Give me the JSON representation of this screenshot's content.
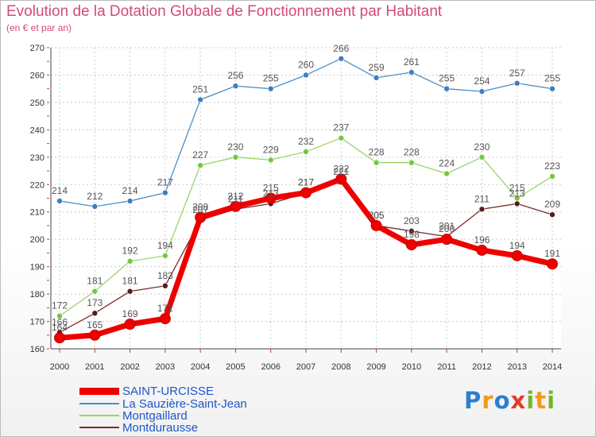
{
  "chart_data": {
    "type": "line",
    "title": "Evolution de la Dotation Globale de Fonctionnement par Habitant",
    "subtitle": "(en € et par an)",
    "categories": [
      "2000",
      "2001",
      "2002",
      "2003",
      "2004",
      "2005",
      "2006",
      "2007",
      "2008",
      "2009",
      "2010",
      "2011",
      "2012",
      "2013",
      "2014"
    ],
    "ylim": [
      160,
      270
    ],
    "yticks": [
      160,
      170,
      180,
      190,
      200,
      210,
      220,
      230,
      240,
      250,
      260,
      270
    ],
    "series": [
      {
        "name": "SAINT-URCISSE",
        "color": "#ee0000",
        "marker": "#ee0000",
        "values": [
          164,
          165,
          169,
          171,
          208,
          212,
          215,
          217,
          222,
          205,
          198,
          200,
          196,
          194,
          191
        ],
        "labels": [
          "164",
          "165",
          "169",
          "171",
          "208",
          "212",
          "215",
          "217",
          "222",
          "205",
          "198",
          "200",
          "196",
          "194",
          "191"
        ]
      },
      {
        "name": "La Sauzière-Saint-Jean",
        "color": "#4a90c8",
        "marker": "#3d7fc0",
        "values": [
          214,
          212,
          214,
          217,
          251,
          256,
          255,
          260,
          266,
          259,
          261,
          255,
          254,
          257,
          255
        ],
        "labels": [
          "214",
          "212",
          "214",
          "217",
          "251",
          "256",
          "255",
          "260",
          "266",
          "259",
          "261",
          "255",
          "254",
          "257",
          "255"
        ]
      },
      {
        "name": "Montgaillard",
        "color": "#9ad46a",
        "marker": "#72c93d",
        "values": [
          172,
          181,
          192,
          194,
          227,
          230,
          229,
          232,
          237,
          228,
          228,
          224,
          230,
          215,
          223
        ],
        "labels": [
          "172",
          "181",
          "192",
          "194",
          "227",
          "230",
          "229",
          "232",
          "237",
          "228",
          "228",
          "224",
          "230",
          "215",
          "223"
        ]
      },
      {
        "name": "Montdurausse",
        "color": "#7a2a2a",
        "marker": "#5a1a1a",
        "values": [
          166,
          173,
          181,
          183,
          207,
          211,
          213,
          217,
          221,
          205,
          203,
          201,
          211,
          213,
          209
        ],
        "labels": [
          "166",
          "173",
          "181",
          "183",
          "207",
          "211",
          "213",
          "217",
          "221",
          "205",
          "203",
          "201",
          "211",
          "213",
          "209"
        ]
      }
    ]
  },
  "legend": {
    "items": [
      "SAINT-URCISSE",
      "La Sauzière-Saint-Jean",
      "Montgaillard",
      "Montdurausse"
    ]
  },
  "logo": {
    "text": "Proxiti",
    "letters": [
      "P",
      "r",
      "o",
      "x",
      "i",
      "t",
      "i"
    ]
  }
}
